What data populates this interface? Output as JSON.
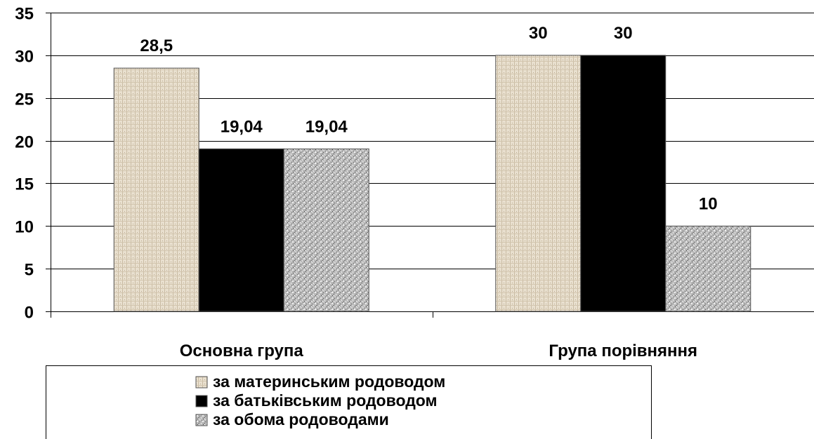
{
  "chart_data": {
    "type": "bar",
    "categories": [
      "Основна група",
      "Група порівняння"
    ],
    "series": [
      {
        "name": "за материнським родоводом",
        "values": [
          28.5,
          30
        ],
        "labels": [
          "28,5",
          "30"
        ],
        "fill": "pattern-beige",
        "color": "#e6dccb"
      },
      {
        "name": "за батьківським родоводом",
        "values": [
          19.04,
          30
        ],
        "labels": [
          "19,04",
          "30"
        ],
        "fill": "solid",
        "color": "#000000"
      },
      {
        "name": "за обома родоводами",
        "values": [
          19.04,
          10
        ],
        "labels": [
          "19,04",
          "10"
        ],
        "fill": "pattern-granite",
        "color": "#a9a9a9"
      }
    ],
    "ylim": [
      0,
      35
    ],
    "yticks": [
      0,
      5,
      10,
      15,
      20,
      25,
      30,
      35
    ],
    "grid": true,
    "legend_position": "bottom"
  }
}
